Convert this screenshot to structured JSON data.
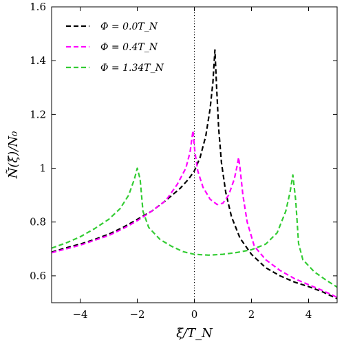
{
  "chart_data": {
    "type": "line",
    "xlabel": "ξ̃/T_N",
    "ylabel": "Ñ(ξ̃)/N₀",
    "xlim": [
      -5,
      5
    ],
    "ylim": [
      0.5,
      1.6
    ],
    "xticks": [
      -4,
      -2,
      0,
      2,
      4
    ],
    "xtick_labels": [
      "−4",
      "−2",
      "0",
      "2",
      "4"
    ],
    "yticks": [
      0.6,
      0.8,
      1.0,
      1.2,
      1.4,
      1.6
    ],
    "ytick_labels": [
      "0.6",
      "0.8",
      "1",
      "1.2",
      "1.4",
      "1.6"
    ],
    "vertical_line": {
      "x": 0,
      "style": "dotted"
    },
    "legend_position": "top-left",
    "grid": false,
    "series": [
      {
        "name": "Φ = 0.0T_N",
        "color": "#000000",
        "style": "dashed",
        "points": [
          [
            -5,
            0.688
          ],
          [
            -4.5,
            0.704
          ],
          [
            -4,
            0.718
          ],
          [
            -3.5,
            0.735
          ],
          [
            -3,
            0.755
          ],
          [
            -2.5,
            0.78
          ],
          [
            -2,
            0.81
          ],
          [
            -1.5,
            0.84
          ],
          [
            -1,
            0.88
          ],
          [
            -0.5,
            0.925
          ],
          [
            -0.2,
            0.96
          ],
          [
            0,
            0.99
          ],
          [
            0.2,
            1.04
          ],
          [
            0.4,
            1.12
          ],
          [
            0.55,
            1.22
          ],
          [
            0.65,
            1.32
          ],
          [
            0.72,
            1.44
          ],
          [
            0.78,
            1.3
          ],
          [
            0.85,
            1.15
          ],
          [
            0.95,
            1.02
          ],
          [
            1.1,
            0.91
          ],
          [
            1.3,
            0.82
          ],
          [
            1.6,
            0.74
          ],
          [
            2,
            0.68
          ],
          [
            2.5,
            0.63
          ],
          [
            3,
            0.6
          ],
          [
            3.5,
            0.577
          ],
          [
            4,
            0.56
          ],
          [
            4.5,
            0.54
          ],
          [
            5,
            0.515
          ]
        ]
      },
      {
        "name": "Φ = 0.4T_N",
        "color": "#ff00ff",
        "style": "dashed",
        "points": [
          [
            -5,
            0.686
          ],
          [
            -4.5,
            0.7
          ],
          [
            -4,
            0.714
          ],
          [
            -3.5,
            0.732
          ],
          [
            -3,
            0.75
          ],
          [
            -2.5,
            0.775
          ],
          [
            -2,
            0.805
          ],
          [
            -1.5,
            0.84
          ],
          [
            -1,
            0.88
          ],
          [
            -0.6,
            0.94
          ],
          [
            -0.3,
            1.0
          ],
          [
            -0.15,
            1.06
          ],
          [
            -0.05,
            1.14
          ],
          [
            0.02,
            1.06
          ],
          [
            0.12,
            0.99
          ],
          [
            0.3,
            0.93
          ],
          [
            0.55,
            0.885
          ],
          [
            0.8,
            0.865
          ],
          [
            1.0,
            0.87
          ],
          [
            1.2,
            0.9
          ],
          [
            1.4,
            0.96
          ],
          [
            1.5,
            1.01
          ],
          [
            1.55,
            1.04
          ],
          [
            1.6,
            1.0
          ],
          [
            1.7,
            0.9
          ],
          [
            1.85,
            0.8
          ],
          [
            2.1,
            0.71
          ],
          [
            2.5,
            0.66
          ],
          [
            3,
            0.62
          ],
          [
            3.5,
            0.59
          ],
          [
            4,
            0.567
          ],
          [
            4.5,
            0.545
          ],
          [
            5,
            0.52
          ]
        ]
      },
      {
        "name": "Φ = 1.34T_N",
        "color": "#33cc33",
        "style": "dashed",
        "points": [
          [
            -5,
            0.703
          ],
          [
            -4.5,
            0.722
          ],
          [
            -4,
            0.745
          ],
          [
            -3.5,
            0.775
          ],
          [
            -3,
            0.81
          ],
          [
            -2.6,
            0.85
          ],
          [
            -2.3,
            0.9
          ],
          [
            -2.1,
            0.96
          ],
          [
            -2,
            1.0
          ],
          [
            -1.9,
            0.96
          ],
          [
            -1.8,
            0.84
          ],
          [
            -1.6,
            0.78
          ],
          [
            -1.2,
            0.735
          ],
          [
            -0.8,
            0.71
          ],
          [
            -0.4,
            0.69
          ],
          [
            0,
            0.68
          ],
          [
            0.5,
            0.677
          ],
          [
            1,
            0.68
          ],
          [
            1.5,
            0.687
          ],
          [
            2,
            0.697
          ],
          [
            2.5,
            0.718
          ],
          [
            2.9,
            0.76
          ],
          [
            3.2,
            0.84
          ],
          [
            3.35,
            0.91
          ],
          [
            3.45,
            0.975
          ],
          [
            3.55,
            0.88
          ],
          [
            3.65,
            0.72
          ],
          [
            3.8,
            0.66
          ],
          [
            4.2,
            0.615
          ],
          [
            4.6,
            0.585
          ],
          [
            5,
            0.558
          ]
        ]
      }
    ]
  }
}
